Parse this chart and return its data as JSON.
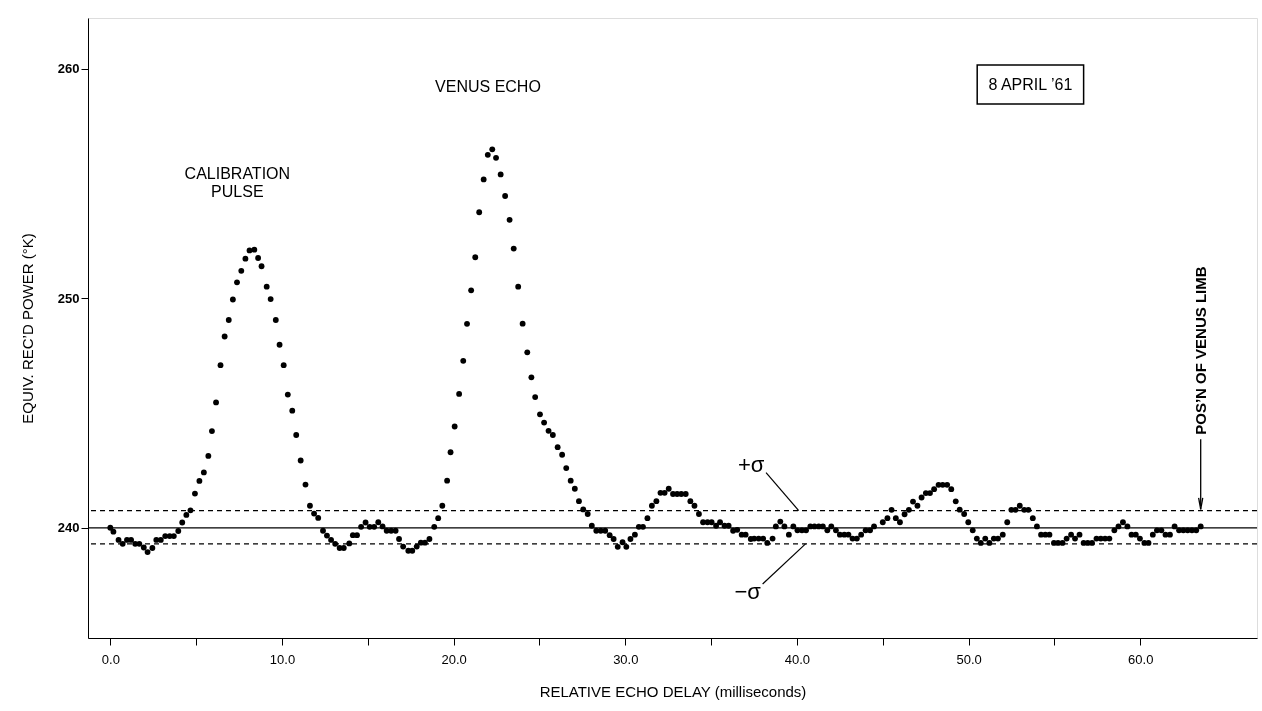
{
  "chart_data": {
    "type": "scatter",
    "xlabel": "RELATIVE ECHO DELAY (milliseconds)",
    "ylabel": "EQUIV. REC’D POWER (°K)",
    "xlim": [
      -1.3,
      66.8
    ],
    "ylim": [
      235.2,
      262.2
    ],
    "xticks": [
      {
        "value": 0,
        "label": "0.0"
      },
      {
        "value": 5,
        "label": null
      },
      {
        "value": 10,
        "label": "10.0"
      },
      {
        "value": 15,
        "label": null
      },
      {
        "value": 20,
        "label": "20.0"
      },
      {
        "value": 25,
        "label": null
      },
      {
        "value": 30,
        "label": "30.0"
      },
      {
        "value": 35,
        "label": null
      },
      {
        "value": 40,
        "label": "40.0"
      },
      {
        "value": 45,
        "label": null
      },
      {
        "value": 50,
        "label": "50.0"
      },
      {
        "value": 55,
        "label": null
      },
      {
        "value": 60,
        "label": "60.0"
      }
    ],
    "yticks": [
      240,
      250,
      260
    ],
    "grid": false,
    "marker": "circle",
    "series": [
      {
        "color": "#000000",
        "x": [
          0.0,
          0.18,
          0.48,
          0.72,
          0.97,
          1.21,
          1.45,
          1.69,
          1.95,
          2.17,
          2.45,
          2.68,
          2.94,
          3.2,
          3.46,
          3.7,
          3.96,
          4.19,
          4.43,
          4.67,
          4.93,
          5.19,
          5.45,
          5.71,
          5.92,
          6.16,
          6.42,
          6.66,
          6.9,
          7.14,
          7.38,
          7.63,
          7.87,
          8.11,
          8.39,
          8.61,
          8.81,
          9.11,
          9.34,
          9.64,
          9.86,
          10.1,
          10.34,
          10.6,
          10.83,
          11.09,
          11.37,
          11.63,
          11.87,
          12.11,
          12.39,
          12.62,
          12.86,
          13.1,
          13.36,
          13.6,
          13.92,
          14.13,
          14.37,
          14.61,
          14.87,
          15.11,
          15.37,
          15.61,
          15.86,
          16.1,
          16.36,
          16.62,
          16.82,
          17.06,
          17.36,
          17.59,
          17.85,
          18.09,
          18.33,
          18.59,
          18.87,
          19.1,
          19.34,
          19.62,
          19.82,
          20.06,
          20.32,
          20.56,
          20.78,
          21.02,
          21.26,
          21.49,
          21.75,
          21.99,
          22.25,
          22.47,
          22.74,
          23.0,
          23.26,
          23.5,
          23.76,
          24.02,
          24.29,
          24.53,
          24.75,
          25.03,
          25.27,
          25.53,
          25.78,
          26.06,
          26.32,
          26.56,
          26.82,
          27.06,
          27.3,
          27.55,
          27.81,
          28.05,
          28.31,
          28.57,
          28.83,
          29.09,
          29.32,
          29.56,
          29.84,
          30.06,
          30.3,
          30.56,
          30.79,
          31.03,
          31.29,
          31.55,
          31.81,
          32.05,
          32.29,
          32.53,
          32.78,
          33.02,
          33.26,
          33.52,
          33.79,
          34.03,
          34.29,
          34.53,
          34.79,
          35.03,
          35.29,
          35.52,
          35.78,
          36.02,
          36.28,
          36.52,
          36.78,
          37.01,
          37.31,
          37.51,
          37.77,
          38.03,
          38.27,
          38.58,
          38.77,
          39.03,
          39.27,
          39.53,
          39.79,
          40.03,
          40.29,
          40.53,
          40.78,
          41.02,
          41.27,
          41.51,
          41.77,
          42.0,
          42.27,
          42.5,
          42.76,
          43.0,
          43.24,
          43.49,
          43.74,
          44.0,
          44.26,
          44.49,
          45.0,
          45.27,
          45.51,
          45.76,
          46.0,
          46.27,
          46.52,
          46.76,
          47.02,
          47.26,
          47.51,
          47.75,
          47.99,
          48.25,
          48.49,
          48.75,
          48.99,
          49.25,
          49.48,
          49.74,
          49.98,
          50.24,
          50.48,
          50.71,
          50.97,
          51.21,
          51.47,
          51.71,
          51.99,
          52.25,
          52.49,
          52.73,
          52.98,
          53.24,
          53.48,
          53.74,
          53.98,
          54.22,
          54.47,
          54.71,
          54.97,
          55.21,
          55.47,
          55.71,
          55.97,
          56.2,
          56.46,
          56.7,
          56.94,
          57.19,
          57.45,
          57.7,
          57.95,
          58.2,
          58.49,
          58.73,
          58.99,
          59.25,
          59.49,
          59.74,
          59.98,
          60.24,
          60.48,
          60.73,
          60.97,
          61.23,
          61.47,
          61.73,
          62.0,
          62.26,
          62.51,
          62.76,
          63.01,
          63.26,
          63.52
        ],
        "values": [
          240.0,
          239.83,
          239.47,
          239.3,
          239.47,
          239.47,
          239.3,
          239.3,
          239.14,
          238.94,
          239.12,
          239.47,
          239.47,
          239.64,
          239.64,
          239.64,
          239.86,
          240.23,
          240.56,
          240.76,
          241.49,
          242.04,
          242.41,
          243.13,
          244.21,
          245.46,
          247.08,
          248.33,
          249.05,
          249.94,
          250.69,
          251.19,
          251.72,
          252.08,
          252.11,
          251.75,
          251.39,
          250.5,
          249.96,
          249.05,
          247.97,
          247.08,
          245.8,
          245.1,
          244.04,
          242.93,
          241.88,
          240.96,
          240.62,
          240.43,
          239.87,
          239.66,
          239.47,
          239.3,
          239.12,
          239.12,
          239.32,
          239.68,
          239.68,
          240.04,
          240.23,
          240.04,
          240.04,
          240.24,
          240.06,
          239.87,
          239.87,
          239.87,
          239.51,
          239.18,
          239.0,
          239.0,
          239.18,
          239.35,
          239.35,
          239.51,
          240.04,
          240.42,
          240.96,
          242.05,
          243.29,
          244.41,
          245.83,
          247.27,
          248.88,
          250.34,
          251.78,
          253.74,
          255.17,
          256.24,
          256.48,
          256.11,
          255.39,
          254.45,
          253.41,
          252.16,
          250.5,
          248.89,
          247.64,
          246.55,
          245.69,
          244.94,
          244.58,
          244.22,
          244.04,
          243.51,
          243.18,
          242.6,
          242.05,
          241.7,
          241.16,
          240.8,
          240.6,
          240.09,
          239.87,
          239.87,
          239.87,
          239.68,
          239.51,
          239.17,
          239.37,
          239.17,
          239.51,
          239.7,
          240.04,
          240.04,
          240.42,
          240.96,
          241.16,
          241.52,
          241.52,
          241.7,
          241.47,
          241.47,
          241.47,
          241.47,
          241.16,
          240.96,
          240.6,
          240.24,
          240.24,
          240.24,
          240.09,
          240.24,
          240.09,
          240.09,
          239.87,
          239.91,
          239.7,
          239.7,
          239.51,
          239.53,
          239.53,
          239.53,
          239.34,
          239.53,
          240.06,
          240.27,
          240.06,
          239.7,
          240.06,
          239.89,
          239.89,
          239.89,
          240.06,
          240.06,
          240.06,
          240.06,
          239.89,
          240.06,
          239.89,
          239.7,
          239.7,
          239.7,
          239.53,
          239.53,
          239.7,
          239.89,
          239.89,
          240.06,
          240.24,
          240.42,
          240.78,
          240.42,
          240.24,
          240.59,
          240.78,
          241.14,
          240.96,
          241.32,
          241.51,
          241.51,
          241.68,
          241.87,
          241.87,
          241.87,
          241.68,
          241.15,
          240.79,
          240.6,
          240.24,
          239.89,
          239.53,
          239.34,
          239.53,
          239.34,
          239.53,
          239.53,
          239.7,
          240.24,
          240.78,
          240.78,
          240.96,
          240.78,
          240.78,
          240.42,
          240.06,
          239.7,
          239.7,
          239.7,
          239.34,
          239.34,
          239.34,
          239.53,
          239.7,
          239.53,
          239.7,
          239.34,
          239.34,
          239.34,
          239.53,
          239.53,
          239.53,
          239.53,
          239.89,
          240.06,
          240.24,
          240.06,
          239.7,
          239.7,
          239.53,
          239.34,
          239.34,
          239.7,
          239.89,
          239.89,
          239.7,
          239.7,
          240.06,
          239.89,
          239.89,
          239.89,
          239.89,
          239.89,
          240.06
        ]
      }
    ],
    "ref_lines": [
      {
        "axis": "y",
        "value": 240,
        "line_style": "solid",
        "color": "#000000"
      },
      {
        "axis": "y",
        "value": 240.75,
        "line_style": "dashed",
        "color": "#000000"
      },
      {
        "axis": "y",
        "value": 239.3,
        "line_style": "dashed",
        "color": "#000000"
      }
    ],
    "annotations": [
      "CALIBRATION\nPULSE",
      "VENUS ECHO",
      "8 APRIL ’61",
      {
        "text": "+σ",
        "x": 40.1,
        "y": 240.75
      },
      {
        "text": "−σ",
        "x": 40.5,
        "y": 239.3
      },
      {
        "text": "POS’N OF VENUS LIMB",
        "x": 63.52,
        "y": 240.75
      }
    ]
  }
}
